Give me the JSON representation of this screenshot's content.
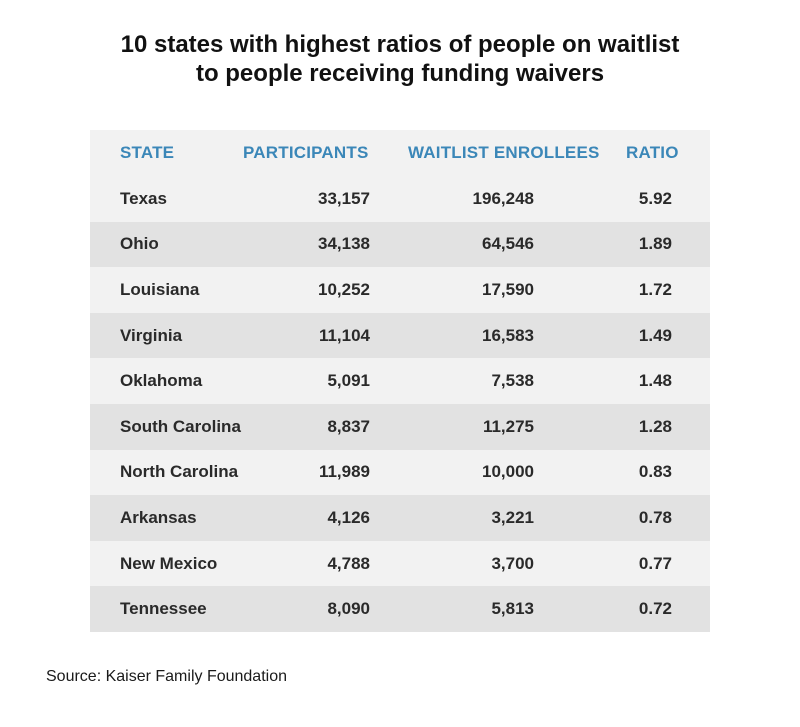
{
  "title": {
    "line1": "10 states with highest ratios of people on waitlist",
    "line2": "to people receiving funding waivers"
  },
  "colors": {
    "header_text": "#3b87b8",
    "row_light": "#f2f2f2",
    "row_dark": "#e2e2e2"
  },
  "source": "Source: Kaiser Family Foundation",
  "chart_data": {
    "type": "table",
    "title": "10 states with highest ratios of people on waitlist to people receiving funding waivers",
    "columns": [
      "STATE",
      "PARTICIPANTS",
      "WAITLIST ENROLLEES",
      "RATIO"
    ],
    "rows": [
      [
        "Texas",
        "33,157",
        "196,248",
        "5.92"
      ],
      [
        "Ohio",
        "34,138",
        "64,546",
        "1.89"
      ],
      [
        "Louisiana",
        "10,252",
        "17,590",
        "1.72"
      ],
      [
        "Virginia",
        "11,104",
        "16,583",
        "1.49"
      ],
      [
        "Oklahoma",
        "5,091",
        "7,538",
        "1.48"
      ],
      [
        "South Carolina",
        "8,837",
        "11,275",
        "1.28"
      ],
      [
        "North Carolina",
        "11,989",
        "10,000",
        "0.83"
      ],
      [
        "Arkansas",
        "4,126",
        "3,221",
        "0.78"
      ],
      [
        "New Mexico",
        "4,788",
        "3,700",
        "0.77"
      ],
      [
        "Tennessee",
        "8,090",
        "5,813",
        "0.72"
      ]
    ]
  }
}
